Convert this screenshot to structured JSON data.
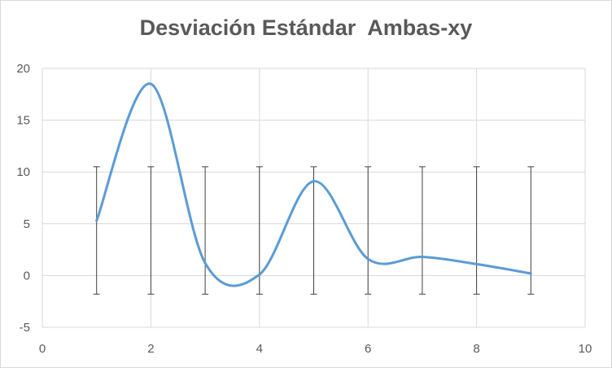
{
  "chart_data": {
    "type": "scatter",
    "title": "Desviación Estándar  Ambas-xy",
    "xlabel": "",
    "ylabel": "",
    "xlim": [
      0,
      10
    ],
    "ylim": [
      -5,
      20
    ],
    "x_ticks": [
      "0",
      "2",
      "4",
      "6",
      "8",
      "10"
    ],
    "y_ticks": [
      "-5",
      "0",
      "5",
      "10",
      "15",
      "20"
    ],
    "grid": true,
    "smoothed_line": true,
    "series": [
      {
        "x": [
          1,
          2,
          3,
          4,
          5,
          6,
          7,
          8,
          9
        ],
        "y": [
          5.3,
          18.5,
          1.2,
          0.1,
          9.1,
          1.6,
          1.8,
          1.1,
          0.2
        ],
        "error_bars_y": {
          "lower": -1.8,
          "upper": 10.5
        },
        "color": "#5b9bd5"
      }
    ],
    "error_bar_color": "#404040",
    "gridline_color": "#d9d9d9"
  }
}
